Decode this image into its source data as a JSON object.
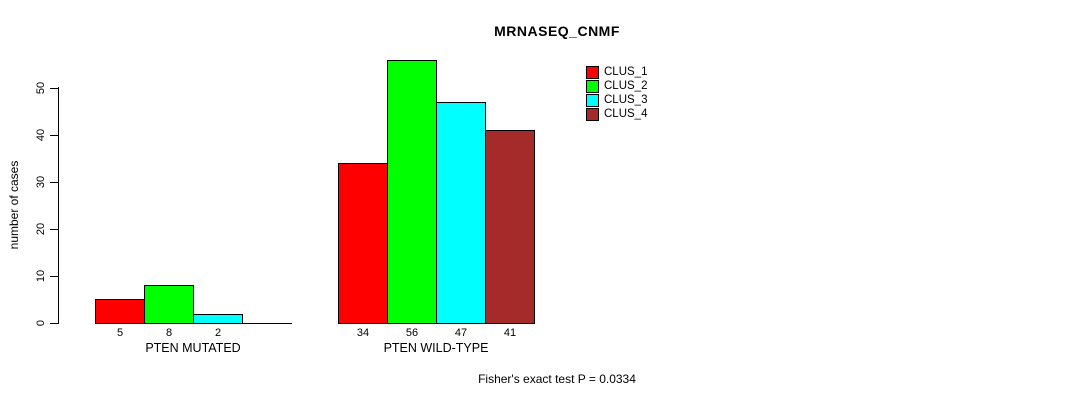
{
  "title": "MRNASEQ_CNMF",
  "footer": "Fisher's exact test P = 0.0334",
  "legend": [
    {
      "label": "CLUS_1",
      "color": "#ff0000"
    },
    {
      "label": "CLUS_2",
      "color": "#00ff00"
    },
    {
      "label": "CLUS_3",
      "color": "#00ffff"
    },
    {
      "label": "CLUS_4",
      "color": "#a52a2a"
    }
  ],
  "chart_data": {
    "type": "bar",
    "title": "MRNASEQ_CNMF",
    "xlabel": "",
    "ylabel": "number of cases",
    "ylim": [
      0,
      50
    ],
    "yticks": [
      0,
      10,
      20,
      30,
      40,
      50
    ],
    "grid": false,
    "legend_position": "top-right",
    "series_colors": {
      "CLUS_1": "#ff0000",
      "CLUS_2": "#00ff00",
      "CLUS_3": "#00ffff",
      "CLUS_4": "#a52a2a"
    },
    "categories": [
      "PTEN MUTATED",
      "PTEN WILD-TYPE"
    ],
    "series": [
      {
        "name": "CLUS_1",
        "values": [
          5,
          34
        ]
      },
      {
        "name": "CLUS_2",
        "values": [
          8,
          56
        ]
      },
      {
        "name": "CLUS_3",
        "values": [
          2,
          47
        ]
      },
      {
        "name": "CLUS_4",
        "values": [
          0,
          41
        ]
      }
    ],
    "groups": [
      {
        "label": "PTEN MUTATED",
        "values": [
          5,
          8,
          2,
          0
        ],
        "bar_labels": [
          "5",
          "8",
          "2",
          ""
        ]
      },
      {
        "label": "PTEN WILD-TYPE",
        "values": [
          34,
          56,
          47,
          41
        ],
        "bar_labels": [
          "34",
          "56",
          "47",
          "41"
        ]
      }
    ],
    "annotation": "Fisher's exact test P = 0.0334"
  }
}
